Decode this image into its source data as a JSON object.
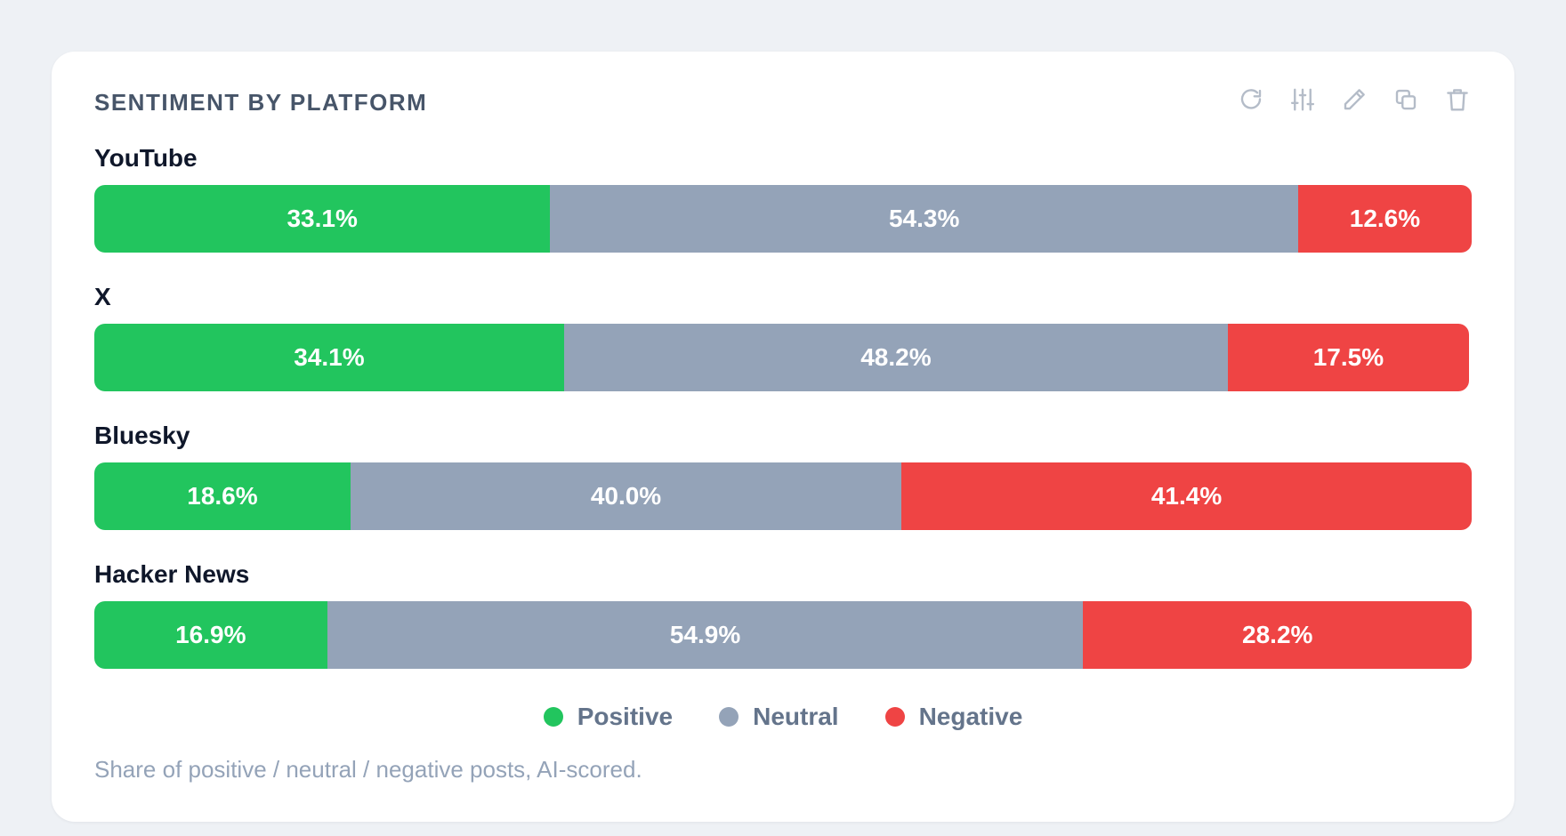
{
  "widget": {
    "title": "SENTIMENT BY PLATFORM",
    "footnote": "Share of positive / neutral / negative posts, AI-scored.",
    "toolbar": [
      {
        "name": "refresh-icon",
        "label": "Refresh"
      },
      {
        "name": "sliders-icon",
        "label": "Filters"
      },
      {
        "name": "pencil-icon",
        "label": "Edit"
      },
      {
        "name": "copy-icon",
        "label": "Duplicate"
      },
      {
        "name": "trash-icon",
        "label": "Delete"
      }
    ]
  },
  "colors": {
    "positive": "#22c55e",
    "neutral": "#94a3b8",
    "negative": "#ef4444"
  },
  "chart_data": {
    "type": "bar",
    "orientation": "horizontal",
    "stacked": true,
    "categories": [
      "YouTube",
      "X",
      "Bluesky",
      "Hacker News"
    ],
    "series": [
      {
        "name": "Positive",
        "values": [
          33.1,
          34.1,
          18.6,
          16.9
        ],
        "labels": [
          "33.1%",
          "34.1%",
          "18.6%",
          "16.9%"
        ],
        "color": "#22c55e"
      },
      {
        "name": "Neutral",
        "values": [
          54.3,
          48.2,
          40.0,
          54.9
        ],
        "labels": [
          "54.3%",
          "48.2%",
          "40.0%",
          "54.9%"
        ],
        "color": "#94a3b8"
      },
      {
        "name": "Negative",
        "values": [
          12.6,
          17.5,
          41.4,
          28.2
        ],
        "labels": [
          "12.6%",
          "17.5%",
          "41.4%",
          "28.2%"
        ],
        "color": "#ef4444"
      }
    ],
    "legend_position": "bottom-center",
    "grid": false
  }
}
